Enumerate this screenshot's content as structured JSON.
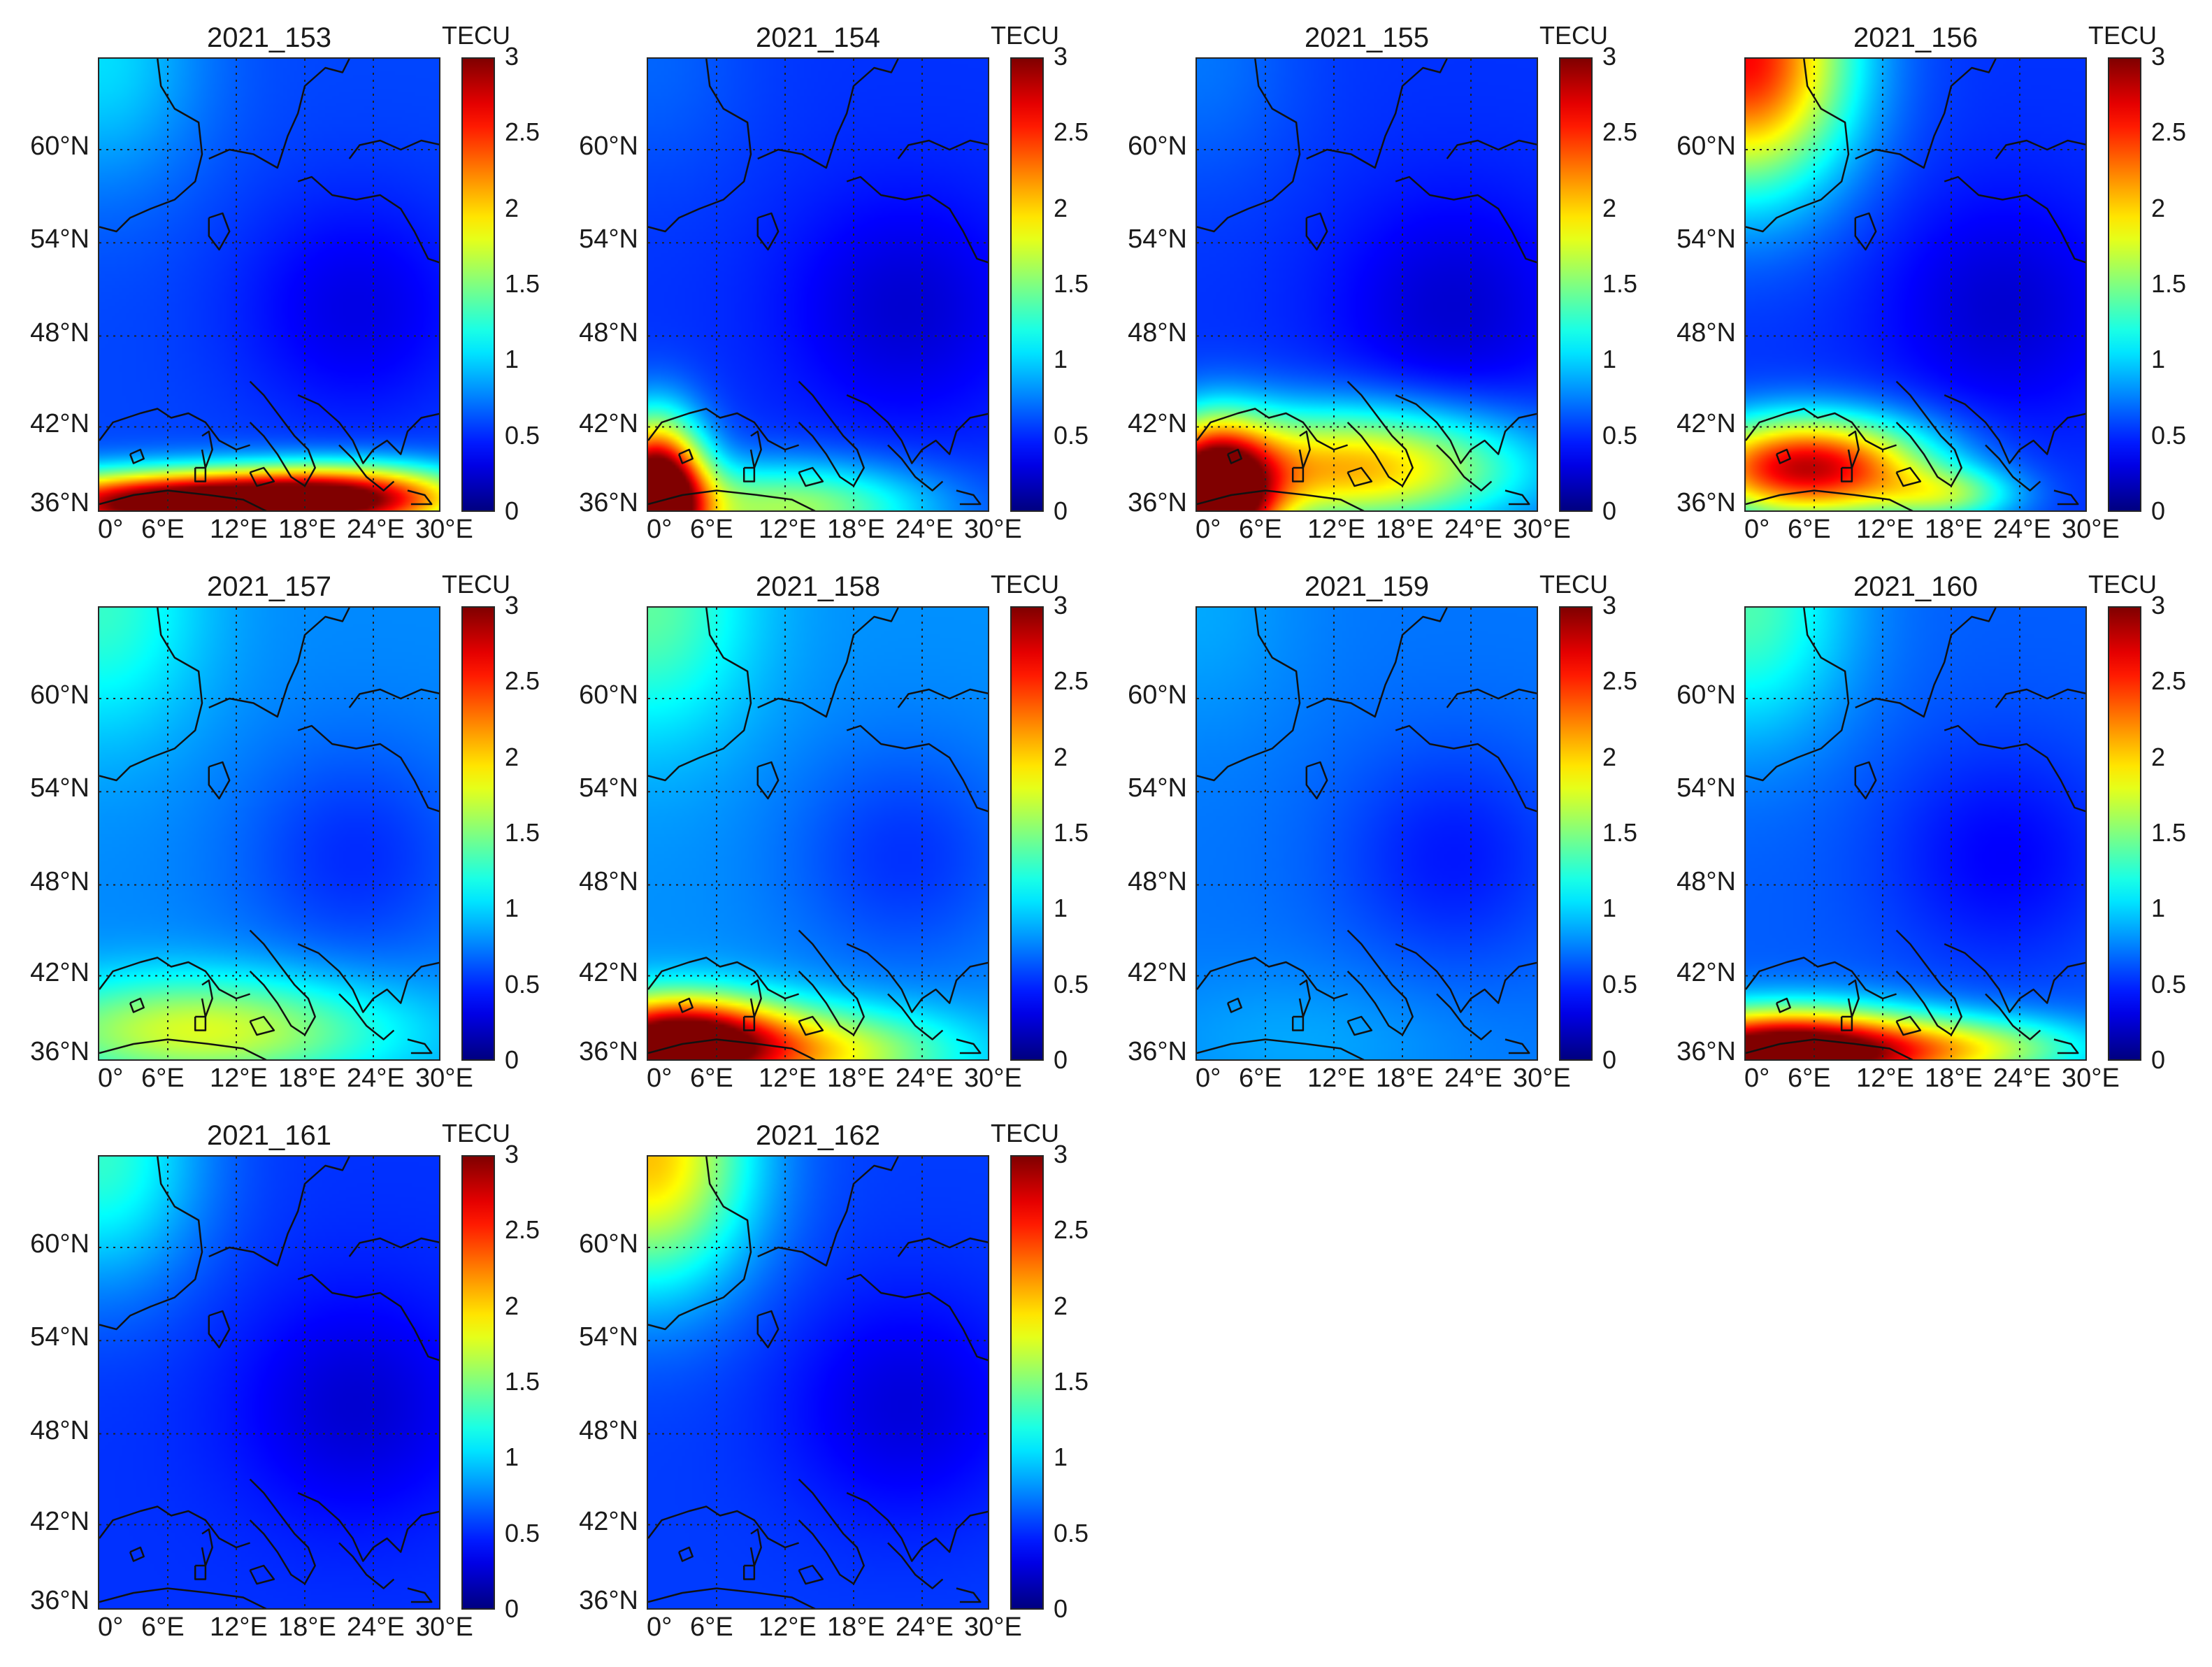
{
  "figure": {
    "colormap": "jet",
    "colorbar_unit": "TECU",
    "colorbar_ticks": [
      "3",
      "2.5",
      "2",
      "1.5",
      "1",
      "0.5",
      "0"
    ],
    "lat_ticks": [
      "60°N",
      "54°N",
      "48°N",
      "42°N",
      "36°N"
    ],
    "lon_ticks": [
      "0°",
      "6°E",
      "12°E",
      "18°E",
      "24°E",
      "30°E"
    ]
  },
  "chart_data": {
    "type": "heatmap",
    "colorbar": {
      "label": "TECU",
      "range": [
        0,
        3
      ]
    },
    "lon_range": [
      0,
      30
    ],
    "lat_range": [
      35,
      65
    ],
    "panels": [
      {
        "title": "2021_153",
        "description": "strong south peak (>3) along 36°N"
      },
      {
        "title": "2021_154",
        "description": "peak >3 in south-west corner"
      },
      {
        "title": "2021_155",
        "description": "broad southern band ~1.5–3"
      },
      {
        "title": "2021_156",
        "description": "southern enhancement ~2.5, NW corner ~2.5"
      },
      {
        "title": "2021_157",
        "description": "moderate southern band ~1.5"
      },
      {
        "title": "2021_158",
        "description": "south-west peak ~3"
      },
      {
        "title": "2021_159",
        "description": "quiet, ~0.5–0.8"
      },
      {
        "title": "2021_160",
        "description": "south-west peak >3"
      },
      {
        "title": "2021_161",
        "description": "quiet, NW ~1.2"
      },
      {
        "title": "2021_162",
        "description": "NW enhancement ~2"
      }
    ]
  }
}
